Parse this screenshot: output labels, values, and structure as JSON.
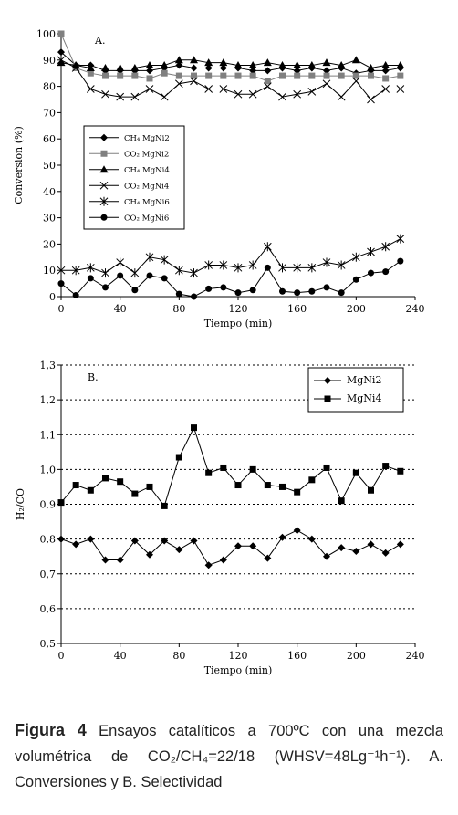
{
  "chart_data": [
    {
      "type": "line",
      "panel_label": "A.",
      "xlabel": "Tiempo (min)",
      "ylabel": "Conversion (%)",
      "xlim": [
        0,
        240
      ],
      "ylim": [
        0,
        100
      ],
      "xticks": [
        "0",
        "40",
        "80",
        "120",
        "160",
        "200",
        "240"
      ],
      "yticks": [
        "0",
        "10",
        "20",
        "30",
        "40",
        "50",
        "60",
        "70",
        "80",
        "90",
        "100"
      ],
      "grid": false,
      "legend_position": "middle-left",
      "series": [
        {
          "name": "CH₄ MgNi2",
          "marker": "diamond",
          "color": "#000000",
          "x": [
            0,
            10,
            20,
            30,
            40,
            50,
            60,
            70,
            80,
            90,
            100,
            110,
            120,
            130,
            140,
            150,
            160,
            170,
            180,
            190,
            200,
            210,
            220,
            230
          ],
          "y": [
            93,
            88,
            88,
            86,
            86,
            86,
            86,
            87,
            88,
            87,
            87,
            87,
            87,
            86,
            86,
            87,
            86,
            87,
            86,
            87,
            85,
            86,
            86,
            87
          ]
        },
        {
          "name": "CO₂ MgNi2",
          "marker": "square",
          "color": "#808080",
          "x": [
            0,
            10,
            20,
            30,
            40,
            50,
            60,
            70,
            80,
            90,
            100,
            110,
            120,
            130,
            140,
            150,
            160,
            170,
            180,
            190,
            200,
            210,
            220,
            230
          ],
          "y": [
            100,
            87,
            85,
            84,
            84,
            84,
            83,
            85,
            84,
            84,
            84,
            84,
            84,
            84,
            82,
            84,
            84,
            84,
            84,
            84,
            84,
            84,
            83,
            84
          ]
        },
        {
          "name": "CH₄ MgNi4",
          "marker": "triangle",
          "color": "#000000",
          "x": [
            0,
            10,
            20,
            30,
            40,
            50,
            60,
            70,
            80,
            90,
            100,
            110,
            120,
            130,
            140,
            150,
            160,
            170,
            180,
            190,
            200,
            210,
            220,
            230
          ],
          "y": [
            89,
            88,
            87,
            87,
            87,
            87,
            88,
            88,
            90,
            90,
            89,
            89,
            88,
            88,
            89,
            88,
            88,
            88,
            89,
            88,
            90,
            87,
            88,
            88
          ]
        },
        {
          "name": "CO₂ MgNi4",
          "marker": "x",
          "color": "#000000",
          "x": [
            0,
            10,
            20,
            30,
            40,
            50,
            60,
            70,
            80,
            90,
            100,
            110,
            120,
            130,
            140,
            150,
            160,
            170,
            180,
            190,
            200,
            210,
            220,
            230
          ],
          "y": [
            90,
            87,
            79,
            77,
            76,
            76,
            79,
            76,
            81,
            82,
            79,
            79,
            77,
            77,
            80,
            76,
            77,
            78,
            81,
            76,
            82,
            75,
            79,
            79
          ]
        },
        {
          "name": "CH₄ MgNi6",
          "marker": "star",
          "color": "#000000",
          "x": [
            0,
            10,
            20,
            30,
            40,
            50,
            60,
            70,
            80,
            90,
            100,
            110,
            120,
            130,
            140,
            150,
            160,
            170,
            180,
            190,
            200,
            210,
            220,
            230
          ],
          "y": [
            10,
            10,
            11,
            9,
            13,
            9,
            15,
            14,
            10,
            9,
            12,
            12,
            11,
            12,
            19,
            11,
            11,
            11,
            13,
            12,
            15,
            17,
            19,
            22
          ]
        },
        {
          "name": "CO₂ MgNi6",
          "marker": "circle",
          "color": "#000000",
          "x": [
            0,
            10,
            20,
            30,
            40,
            50,
            60,
            70,
            80,
            90,
            100,
            110,
            120,
            130,
            140,
            150,
            160,
            170,
            180,
            190,
            200,
            210,
            220,
            230
          ],
          "y": [
            5,
            0.5,
            7,
            3.5,
            8,
            2.5,
            8,
            7,
            1,
            0,
            3,
            3.5,
            1.5,
            2.5,
            11,
            2,
            1.5,
            2,
            3.5,
            1.5,
            6.5,
            9,
            9.5,
            13.5
          ]
        }
      ]
    },
    {
      "type": "line",
      "panel_label": "B.",
      "xlabel": "Tiempo (min)",
      "ylabel": "H₂/CO",
      "xlim": [
        0,
        240
      ],
      "ylim": [
        0.5,
        1.3
      ],
      "xticks": [
        "0",
        "40",
        "80",
        "120",
        "160",
        "200",
        "240"
      ],
      "yticks": [
        "0,5",
        "0,6",
        "0,7",
        "0,8",
        "0,9",
        "1,0",
        "1,1",
        "1,2",
        "1,3"
      ],
      "grid": "horizontal-dotted",
      "legend_position": "top-right",
      "series": [
        {
          "name": "MgNi2",
          "marker": "diamond",
          "color": "#000000",
          "x": [
            0,
            10,
            20,
            30,
            40,
            50,
            60,
            70,
            80,
            90,
            100,
            110,
            120,
            130,
            140,
            150,
            160,
            170,
            180,
            190,
            200,
            210,
            220,
            230
          ],
          "y": [
            0.8,
            0.785,
            0.8,
            0.74,
            0.74,
            0.795,
            0.755,
            0.795,
            0.77,
            0.795,
            0.725,
            0.74,
            0.78,
            0.78,
            0.745,
            0.805,
            0.825,
            0.8,
            0.75,
            0.775,
            0.765,
            0.785,
            0.76,
            0.785
          ]
        },
        {
          "name": "MgNi4",
          "marker": "square",
          "color": "#000000",
          "x": [
            0,
            10,
            20,
            30,
            40,
            50,
            60,
            70,
            80,
            90,
            100,
            110,
            120,
            130,
            140,
            150,
            160,
            170,
            180,
            190,
            200,
            210,
            220,
            230
          ],
          "y": [
            0.905,
            0.955,
            0.94,
            0.975,
            0.965,
            0.93,
            0.95,
            0.895,
            1.035,
            1.12,
            0.99,
            1.005,
            0.955,
            1.0,
            0.955,
            0.95,
            0.935,
            0.97,
            1.005,
            0.91,
            0.99,
            0.94,
            1.01,
            0.995
          ]
        }
      ]
    }
  ],
  "caption": {
    "figure_label": "Figura 4",
    "text": "Ensayos catalíticos a 700ºC con una mezcla volumétrica de CO₂/CH₄=22/18 (WHSV=48Lg⁻¹h⁻¹). A. Conversiones y B. Selectividad"
  }
}
